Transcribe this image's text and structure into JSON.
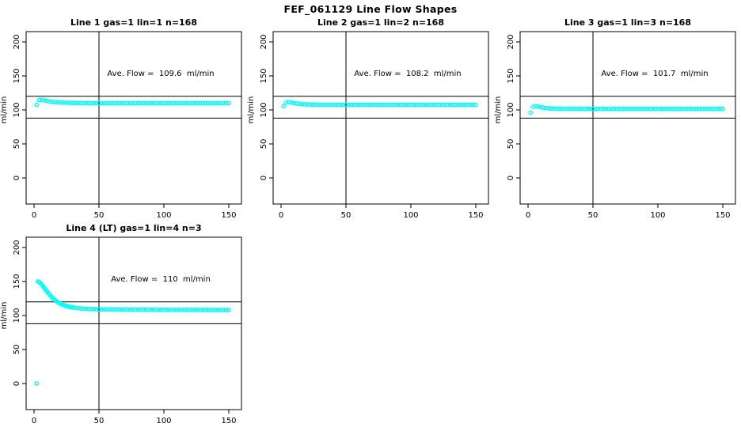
{
  "page": {
    "title": "FEF_061129  Line Flow Shapes"
  },
  "chart_data": {
    "type": "scatter",
    "title": "FEF_061129  Line Flow Shapes",
    "xlabel": "",
    "ylabel": "ml/min",
    "x_ticks": [
      0,
      50,
      100,
      150
    ],
    "y_ticks": [
      0,
      50,
      100,
      150,
      200
    ],
    "xlim": [
      -6,
      160
    ],
    "ylim": [
      -40,
      215
    ],
    "grid": false,
    "marker": "open-circle",
    "marker_color": "#00FFFF",
    "axis_color": "#000000",
    "reference_lines": {
      "vertical_x": 50,
      "horizontal_y": [
        120,
        88
      ]
    },
    "panels": [
      {
        "title": "Line 1 gas=1 lin=1 n=168",
        "annotation": "Ave. Flow =  109.6  ml/min",
        "ave_flow_ml_min": 109.6,
        "n": 168,
        "points": [
          [
            2,
            107.5
          ],
          [
            4,
            114.5
          ],
          [
            6,
            115
          ],
          [
            8,
            114
          ],
          [
            10,
            113.2
          ],
          [
            12,
            112.5
          ],
          [
            14,
            112
          ],
          [
            16,
            111.6
          ],
          [
            18,
            111.2
          ],
          [
            20,
            111
          ],
          [
            22,
            110.8
          ],
          [
            24,
            110.6
          ],
          [
            26,
            110.5
          ],
          [
            28,
            110.4
          ],
          [
            30,
            110.3
          ],
          [
            32,
            110.2
          ],
          [
            34,
            110.2
          ],
          [
            36,
            110.1
          ],
          [
            38,
            110.1
          ],
          [
            40,
            110
          ],
          [
            42,
            110
          ],
          [
            44,
            109.9
          ],
          [
            46,
            110
          ],
          [
            48,
            110.1
          ],
          [
            50,
            110
          ],
          [
            52,
            109.9
          ],
          [
            54,
            110
          ],
          [
            56,
            110
          ],
          [
            58,
            110.1
          ],
          [
            60,
            110
          ],
          [
            62,
            109.9
          ],
          [
            64,
            110
          ],
          [
            66,
            110
          ],
          [
            68,
            110.1
          ],
          [
            70,
            110
          ],
          [
            72,
            110
          ],
          [
            74,
            109.9
          ],
          [
            76,
            110
          ],
          [
            78,
            110
          ],
          [
            80,
            110.1
          ],
          [
            82,
            110
          ],
          [
            84,
            109.9
          ],
          [
            86,
            110
          ],
          [
            88,
            110
          ],
          [
            90,
            110
          ],
          [
            92,
            110.1
          ],
          [
            94,
            110
          ],
          [
            96,
            109.9
          ],
          [
            98,
            110
          ],
          [
            100,
            110
          ],
          [
            102,
            110
          ],
          [
            104,
            110.1
          ],
          [
            106,
            110
          ],
          [
            108,
            109.9
          ],
          [
            110,
            110
          ],
          [
            112,
            110
          ],
          [
            114,
            110
          ],
          [
            116,
            110.1
          ],
          [
            118,
            110
          ],
          [
            120,
            109.9
          ],
          [
            122,
            110
          ],
          [
            124,
            110
          ],
          [
            126,
            110
          ],
          [
            128,
            110
          ],
          [
            130,
            110.1
          ],
          [
            132,
            110
          ],
          [
            134,
            109.9
          ],
          [
            136,
            110
          ],
          [
            138,
            110
          ],
          [
            140,
            110
          ],
          [
            142,
            110
          ],
          [
            144,
            110.1
          ],
          [
            146,
            110
          ],
          [
            148,
            109.9
          ],
          [
            150,
            110
          ]
        ]
      },
      {
        "title": "Line 2 gas=1 lin=2 n=168",
        "annotation": "Ave. Flow =  108.2  ml/min",
        "ave_flow_ml_min": 108.2,
        "n": 168,
        "points": [
          [
            2,
            105.5
          ],
          [
            4,
            111
          ],
          [
            6,
            111.5
          ],
          [
            8,
            110.8
          ],
          [
            10,
            110
          ],
          [
            12,
            109.4
          ],
          [
            14,
            108.9
          ],
          [
            16,
            108.5
          ],
          [
            18,
            108.2
          ],
          [
            20,
            108
          ],
          [
            22,
            107.9
          ],
          [
            24,
            107.8
          ],
          [
            26,
            107.8
          ],
          [
            28,
            107.7
          ],
          [
            30,
            107.7
          ],
          [
            32,
            107.7
          ],
          [
            34,
            107.6
          ],
          [
            36,
            107.6
          ],
          [
            38,
            107.6
          ],
          [
            40,
            107.6
          ],
          [
            42,
            107.6
          ],
          [
            44,
            107.5
          ],
          [
            46,
            107.6
          ],
          [
            48,
            107.6
          ],
          [
            50,
            107.6
          ],
          [
            52,
            107.5
          ],
          [
            54,
            107.6
          ],
          [
            56,
            107.6
          ],
          [
            58,
            107.6
          ],
          [
            60,
            107.6
          ],
          [
            62,
            107.5
          ],
          [
            64,
            107.6
          ],
          [
            66,
            107.6
          ],
          [
            68,
            107.7
          ],
          [
            70,
            107.6
          ],
          [
            72,
            107.6
          ],
          [
            74,
            107.5
          ],
          [
            76,
            107.6
          ],
          [
            78,
            107.6
          ],
          [
            80,
            107.6
          ],
          [
            82,
            107.6
          ],
          [
            84,
            107.5
          ],
          [
            86,
            107.6
          ],
          [
            88,
            107.6
          ],
          [
            90,
            107.6
          ],
          [
            92,
            107.6
          ],
          [
            94,
            107.6
          ],
          [
            96,
            107.5
          ],
          [
            98,
            107.6
          ],
          [
            100,
            107.6
          ],
          [
            102,
            107.6
          ],
          [
            104,
            107.6
          ],
          [
            106,
            107.6
          ],
          [
            108,
            107.5
          ],
          [
            110,
            107.6
          ],
          [
            112,
            107.6
          ],
          [
            114,
            107.6
          ],
          [
            116,
            107.6
          ],
          [
            118,
            107.6
          ],
          [
            120,
            107.5
          ],
          [
            122,
            107.6
          ],
          [
            124,
            107.6
          ],
          [
            126,
            107.6
          ],
          [
            128,
            107.6
          ],
          [
            130,
            107.6
          ],
          [
            132,
            107.6
          ],
          [
            134,
            107.5
          ],
          [
            136,
            107.6
          ],
          [
            138,
            107.6
          ],
          [
            140,
            107.6
          ],
          [
            142,
            107.6
          ],
          [
            144,
            107.6
          ],
          [
            146,
            107.6
          ],
          [
            148,
            107.5
          ],
          [
            150,
            107.6
          ]
        ]
      },
      {
        "title": "Line 3 gas=1 lin=3 n=168",
        "annotation": "Ave. Flow =  101.7  ml/min",
        "ave_flow_ml_min": 101.7,
        "n": 168,
        "points": [
          [
            2,
            96
          ],
          [
            4,
            104.5
          ],
          [
            6,
            105.5
          ],
          [
            8,
            104.8
          ],
          [
            10,
            104
          ],
          [
            12,
            103.3
          ],
          [
            14,
            102.8
          ],
          [
            16,
            102.4
          ],
          [
            18,
            102.1
          ],
          [
            20,
            101.9
          ],
          [
            22,
            101.8
          ],
          [
            24,
            101.7
          ],
          [
            26,
            101.7
          ],
          [
            28,
            101.6
          ],
          [
            30,
            101.6
          ],
          [
            32,
            101.6
          ],
          [
            34,
            101.5
          ],
          [
            36,
            101.5
          ],
          [
            38,
            101.5
          ],
          [
            40,
            101.5
          ],
          [
            42,
            101.5
          ],
          [
            44,
            101.4
          ],
          [
            46,
            101.5
          ],
          [
            48,
            101.5
          ],
          [
            50,
            101.5
          ],
          [
            52,
            101.4
          ],
          [
            54,
            101.5
          ],
          [
            56,
            101.5
          ],
          [
            58,
            101.4
          ],
          [
            60,
            101.5
          ],
          [
            62,
            101.5
          ],
          [
            64,
            101.4
          ],
          [
            66,
            101.5
          ],
          [
            68,
            101.5
          ],
          [
            70,
            101.5
          ],
          [
            72,
            101.4
          ],
          [
            74,
            101.5
          ],
          [
            76,
            101.5
          ],
          [
            78,
            101.5
          ],
          [
            80,
            101.4
          ],
          [
            82,
            101.5
          ],
          [
            84,
            101.5
          ],
          [
            86,
            101.5
          ],
          [
            88,
            101.4
          ],
          [
            90,
            101.5
          ],
          [
            92,
            101.5
          ],
          [
            94,
            101.5
          ],
          [
            96,
            101.4
          ],
          [
            98,
            101.5
          ],
          [
            100,
            101.5
          ],
          [
            102,
            101.5
          ],
          [
            104,
            101.4
          ],
          [
            106,
            101.5
          ],
          [
            108,
            101.5
          ],
          [
            110,
            101.5
          ],
          [
            112,
            101.4
          ],
          [
            114,
            101.5
          ],
          [
            116,
            101.5
          ],
          [
            118,
            101.5
          ],
          [
            120,
            101.4
          ],
          [
            122,
            101.5
          ],
          [
            124,
            101.5
          ],
          [
            126,
            101.5
          ],
          [
            128,
            101.4
          ],
          [
            130,
            101.5
          ],
          [
            132,
            101.5
          ],
          [
            134,
            101.5
          ],
          [
            136,
            101.4
          ],
          [
            138,
            101.5
          ],
          [
            140,
            101.5
          ],
          [
            142,
            101.5
          ],
          [
            144,
            101.4
          ],
          [
            146,
            101.5
          ],
          [
            148,
            101.5
          ],
          [
            150,
            101.5
          ]
        ]
      },
      {
        "title": "Line 4 (LT) gas=1 lin=4 n=3",
        "annotation": "Ave. Flow =  110  ml/min",
        "ave_flow_ml_min": 110,
        "n": 3,
        "points": [
          [
            2,
            0
          ],
          [
            3,
            150
          ],
          [
            4,
            149
          ],
          [
            5,
            147.5
          ],
          [
            6,
            145.5
          ],
          [
            7,
            143
          ],
          [
            8,
            140.5
          ],
          [
            9,
            138
          ],
          [
            10,
            135.5
          ],
          [
            11,
            133
          ],
          [
            12,
            130.5
          ],
          [
            13,
            128.5
          ],
          [
            14,
            126.5
          ],
          [
            15,
            124.5
          ],
          [
            16,
            123
          ],
          [
            17,
            121.5
          ],
          [
            18,
            120
          ],
          [
            19,
            118.8
          ],
          [
            20,
            117.8
          ],
          [
            21,
            116.8
          ],
          [
            22,
            116
          ],
          [
            23,
            115.2
          ],
          [
            24,
            114.5
          ],
          [
            25,
            113.9
          ],
          [
            26,
            113.4
          ],
          [
            27,
            112.9
          ],
          [
            28,
            112.5
          ],
          [
            29,
            112.1
          ],
          [
            30,
            111.8
          ],
          [
            32,
            111.2
          ],
          [
            34,
            110.8
          ],
          [
            36,
            110.4
          ],
          [
            38,
            110.1
          ],
          [
            40,
            109.9
          ],
          [
            42,
            109.7
          ],
          [
            44,
            109.5
          ],
          [
            46,
            109.4
          ],
          [
            48,
            109.3
          ],
          [
            50,
            109.2
          ],
          [
            52,
            109.1
          ],
          [
            54,
            109.1
          ],
          [
            56,
            109
          ],
          [
            58,
            109
          ],
          [
            60,
            108.9
          ],
          [
            62,
            108.9
          ],
          [
            64,
            108.8
          ],
          [
            66,
            108.8
          ],
          [
            68,
            108.8
          ],
          [
            70,
            108.7
          ],
          [
            72,
            108.7
          ],
          [
            74,
            108.7
          ],
          [
            76,
            108.6
          ],
          [
            78,
            108.6
          ],
          [
            80,
            108.6
          ],
          [
            82,
            108.6
          ],
          [
            84,
            108.5
          ],
          [
            86,
            108.5
          ],
          [
            88,
            108.5
          ],
          [
            90,
            108.5
          ],
          [
            92,
            108.5
          ],
          [
            94,
            108.4
          ],
          [
            96,
            108.4
          ],
          [
            98,
            108.4
          ],
          [
            100,
            108.4
          ],
          [
            102,
            108.4
          ],
          [
            104,
            108.4
          ],
          [
            106,
            108.3
          ],
          [
            108,
            108.3
          ],
          [
            110,
            108.3
          ],
          [
            112,
            108.3
          ],
          [
            114,
            108.3
          ],
          [
            116,
            108.3
          ],
          [
            118,
            108.3
          ],
          [
            120,
            108.2
          ],
          [
            122,
            108.2
          ],
          [
            124,
            108.2
          ],
          [
            126,
            108.2
          ],
          [
            128,
            108.2
          ],
          [
            130,
            108.2
          ],
          [
            132,
            108.2
          ],
          [
            134,
            108.2
          ],
          [
            136,
            108.1
          ],
          [
            138,
            108.1
          ],
          [
            140,
            108.1
          ],
          [
            142,
            108.1
          ],
          [
            144,
            108.1
          ],
          [
            146,
            108.1
          ],
          [
            148,
            108.1
          ],
          [
            150,
            108.1
          ]
        ]
      }
    ]
  }
}
